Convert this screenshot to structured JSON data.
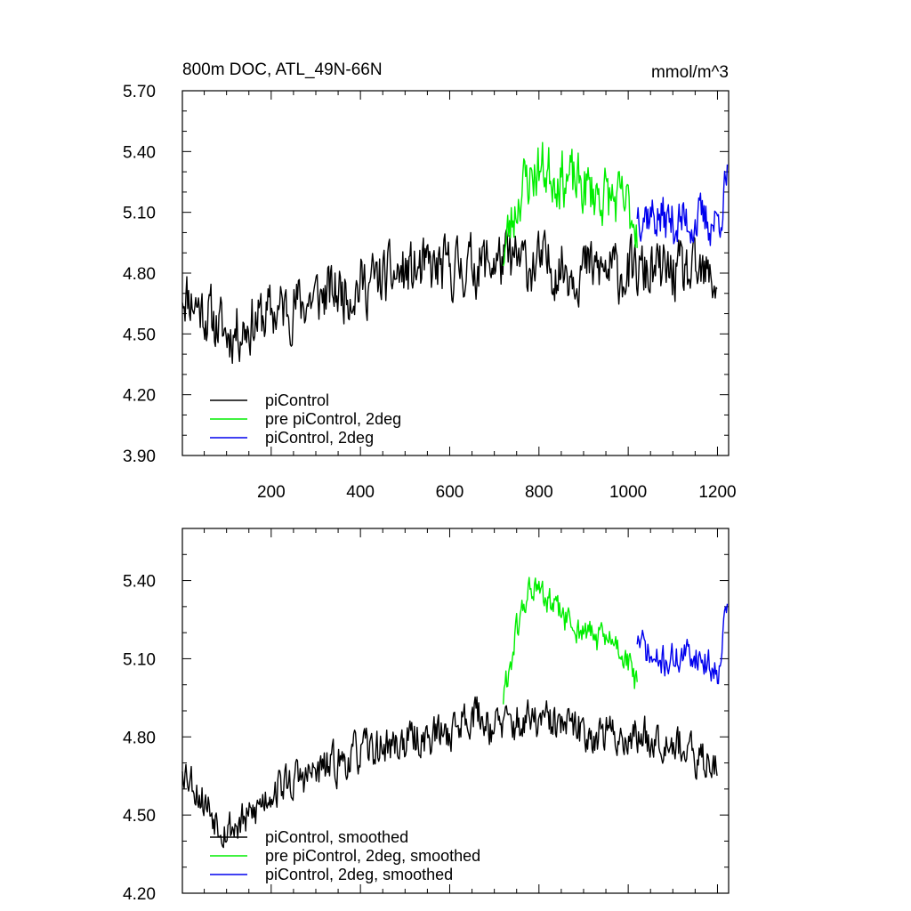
{
  "chart_data": [
    {
      "type": "line",
      "title": "800m DOC, ATL_49N-66N",
      "units": "mmol/m^3",
      "xlabel": "",
      "ylabel": "",
      "xlim": [
        1,
        1225
      ],
      "ylim": [
        3.9,
        5.7
      ],
      "xticks": [
        200,
        400,
        600,
        800,
        1000,
        1200
      ],
      "xtick_labels": [
        "200",
        "400",
        "600",
        "800",
        "1000",
        "1200"
      ],
      "yticks": [
        3.9,
        4.2,
        4.5,
        4.8,
        5.1,
        5.4,
        5.7
      ],
      "ytick_labels": [
        "3.90",
        "4.20",
        "4.50",
        "4.80",
        "5.10",
        "5.40",
        "5.70"
      ],
      "legend_position": "bottom-left",
      "series": [
        {
          "name": "piControl",
          "color": "#000000",
          "x_start": 1,
          "x_end": 1200,
          "noise": 0.17,
          "seed": 11,
          "trend_x": [
            1,
            100,
            200,
            300,
            400,
            500,
            600,
            700,
            800,
            900,
            1000,
            1100,
            1200
          ],
          "trend_y": [
            4.72,
            4.5,
            4.6,
            4.68,
            4.74,
            4.8,
            4.82,
            4.86,
            4.84,
            4.82,
            4.8,
            4.8,
            4.76
          ]
        },
        {
          "name": "pre piControl, 2deg",
          "color": "#00ee00",
          "x_start": 720,
          "x_end": 1020,
          "noise": 0.17,
          "seed": 23,
          "trend_x": [
            720,
            760,
            800,
            850,
            900,
            950,
            1000,
            1020
          ],
          "trend_y": [
            4.9,
            5.22,
            5.32,
            5.28,
            5.22,
            5.18,
            5.12,
            5.05
          ]
        },
        {
          "name": "piControl, 2deg",
          "color": "#0000ee",
          "x_start": 1020,
          "x_end": 1222,
          "noise": 0.14,
          "seed": 37,
          "trend_x": [
            1020,
            1060,
            1100,
            1150,
            1200,
            1222
          ],
          "trend_y": [
            5.12,
            5.08,
            5.05,
            5.06,
            5.05,
            5.25
          ]
        }
      ]
    },
    {
      "type": "line",
      "title": "",
      "xlim": [
        1,
        1225
      ],
      "ylim": [
        4.2,
        5.6
      ],
      "yticks": [
        4.2,
        4.5,
        4.8,
        5.1,
        5.4
      ],
      "ytick_labels": [
        "4.20",
        "4.50",
        "4.80",
        "5.10",
        "5.40"
      ],
      "legend_position": "bottom-left",
      "series": [
        {
          "name": "piControl, smoothed",
          "color": "#000000",
          "x_start": 1,
          "x_end": 1200,
          "noise": 0.09,
          "seed": 53,
          "trend_x": [
            1,
            50,
            100,
            150,
            200,
            300,
            400,
            500,
            600,
            650,
            700,
            800,
            900,
            1000,
            1100,
            1150,
            1200
          ],
          "trend_y": [
            4.7,
            4.55,
            4.45,
            4.48,
            4.6,
            4.66,
            4.74,
            4.78,
            4.82,
            4.9,
            4.84,
            4.86,
            4.82,
            4.8,
            4.8,
            4.7,
            4.72
          ]
        },
        {
          "name": "pre piControl, 2deg, smoothed",
          "color": "#00ee00",
          "x_start": 720,
          "x_end": 1020,
          "noise": 0.07,
          "seed": 61,
          "trend_x": [
            720,
            750,
            780,
            830,
            880,
            930,
            980,
            1020
          ],
          "trend_y": [
            4.95,
            5.2,
            5.38,
            5.3,
            5.22,
            5.18,
            5.15,
            5.0
          ]
        },
        {
          "name": "piControl, 2deg, smoothed",
          "color": "#0000ee",
          "x_start": 1020,
          "x_end": 1222,
          "noise": 0.07,
          "seed": 71,
          "trend_x": [
            1020,
            1060,
            1100,
            1150,
            1200,
            1222
          ],
          "trend_y": [
            5.18,
            5.08,
            5.1,
            5.12,
            5.05,
            5.32
          ]
        }
      ]
    }
  ]
}
